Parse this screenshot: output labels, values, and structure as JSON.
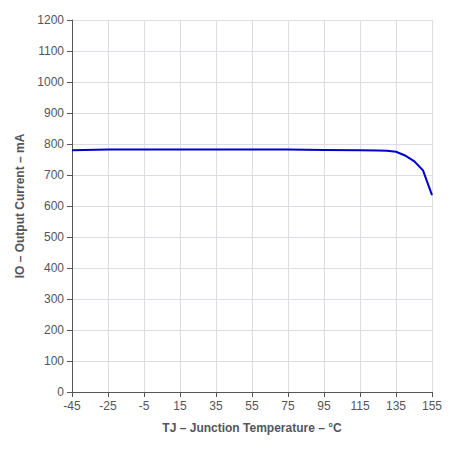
{
  "chart_data": {
    "type": "line",
    "xlabel": "TJ – Junction Temperature – °C",
    "ylabel": "IO – Output Current – mA",
    "x": [
      -45,
      -25,
      -5,
      15,
      35,
      55,
      75,
      95,
      115,
      125,
      130,
      135,
      140,
      145,
      150,
      155
    ],
    "values": [
      780,
      782,
      782,
      782,
      782,
      782,
      782,
      781,
      780,
      779,
      778,
      775,
      763,
      745,
      715,
      635
    ],
    "color": "#0000CC",
    "xlim": [
      -45,
      155
    ],
    "ylim": [
      0,
      1200
    ],
    "xticks": [
      -45,
      -25,
      -5,
      15,
      35,
      55,
      75,
      95,
      115,
      135,
      155
    ],
    "yticks": [
      0,
      100,
      200,
      300,
      400,
      500,
      600,
      700,
      800,
      900,
      1000,
      1100,
      1200
    ],
    "grid": true
  }
}
